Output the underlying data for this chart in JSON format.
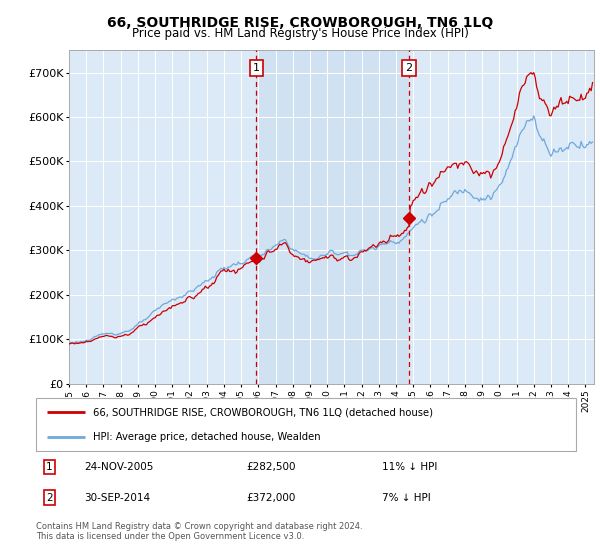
{
  "title": "66, SOUTHRIDGE RISE, CROWBOROUGH, TN6 1LQ",
  "subtitle": "Price paid vs. HM Land Registry's House Price Index (HPI)",
  "legend_line1": "66, SOUTHRIDGE RISE, CROWBOROUGH, TN6 1LQ (detached house)",
  "legend_line2": "HPI: Average price, detached house, Wealden",
  "sale1_date": "24-NOV-2005",
  "sale1_price": 282500,
  "sale2_date": "30-SEP-2014",
  "sale2_price": 372000,
  "sale1_pct": "11% ↓ HPI",
  "sale2_pct": "7% ↓ HPI",
  "copyright": "Contains HM Land Registry data © Crown copyright and database right 2024.\nThis data is licensed under the Open Government Licence v3.0.",
  "hpi_color": "#6fa8dc",
  "price_color": "#cc0000",
  "vline_color": "#cc0000",
  "shade_color": "#dce9f7",
  "background_color": "#dce9f7",
  "ylim": [
    0,
    750000
  ],
  "yticks": [
    0,
    100000,
    200000,
    300000,
    400000,
    500000,
    600000,
    700000
  ],
  "ytick_labels": [
    "£0",
    "£100K",
    "£200K",
    "£300K",
    "£400K",
    "£500K",
    "£600K",
    "£700K"
  ],
  "sale1_year_f": 2005.875,
  "sale2_year_f": 2014.75,
  "xmin": 1995.0,
  "xmax": 2025.5
}
